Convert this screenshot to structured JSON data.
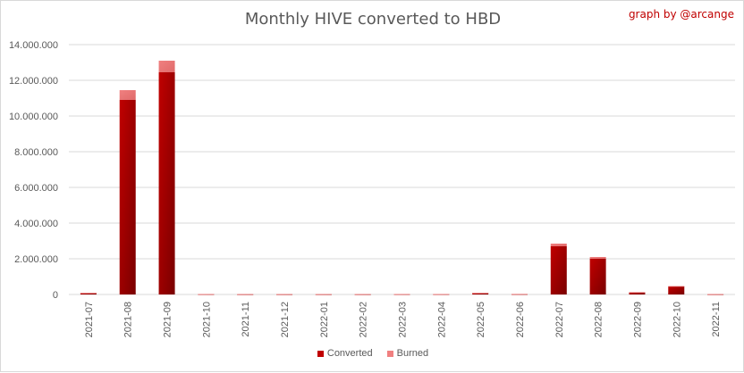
{
  "credit": "graph by @arcange",
  "chart_data": {
    "type": "bar",
    "stacked": true,
    "title": "Monthly HIVE converted to HBD",
    "xlabel": "",
    "ylabel": "",
    "ylim": [
      0,
      14000000
    ],
    "yticks": [
      "0",
      "2.000.000",
      "4.000.000",
      "6.000.000",
      "8.000.000",
      "10.000.000",
      "12.000.000",
      "14.000.000"
    ],
    "ytick_values": [
      0,
      2000000,
      4000000,
      6000000,
      8000000,
      10000000,
      12000000,
      14000000
    ],
    "grid": true,
    "legend_position": "bottom",
    "categories": [
      "2021-07",
      "2021-08",
      "2021-09",
      "2021-10",
      "2021-11",
      "2021-12",
      "2022-01",
      "2022-02",
      "2022-03",
      "2022-04",
      "2022-05",
      "2022-06",
      "2022-07",
      "2022-08",
      "2022-09",
      "2022-10",
      "2022-11"
    ],
    "series": [
      {
        "name": "Converted",
        "color": "#c00000",
        "values": [
          80000,
          10900000,
          12450000,
          15000,
          10000,
          10000,
          10000,
          10000,
          15000,
          15000,
          80000,
          20000,
          2700000,
          2000000,
          120000,
          450000,
          10000
        ]
      },
      {
        "name": "Burned",
        "color": "#f08080",
        "values": [
          10000,
          550000,
          650000,
          10000,
          10000,
          10000,
          10000,
          10000,
          10000,
          10000,
          10000,
          10000,
          150000,
          100000,
          10000,
          20000,
          10000
        ]
      }
    ]
  }
}
